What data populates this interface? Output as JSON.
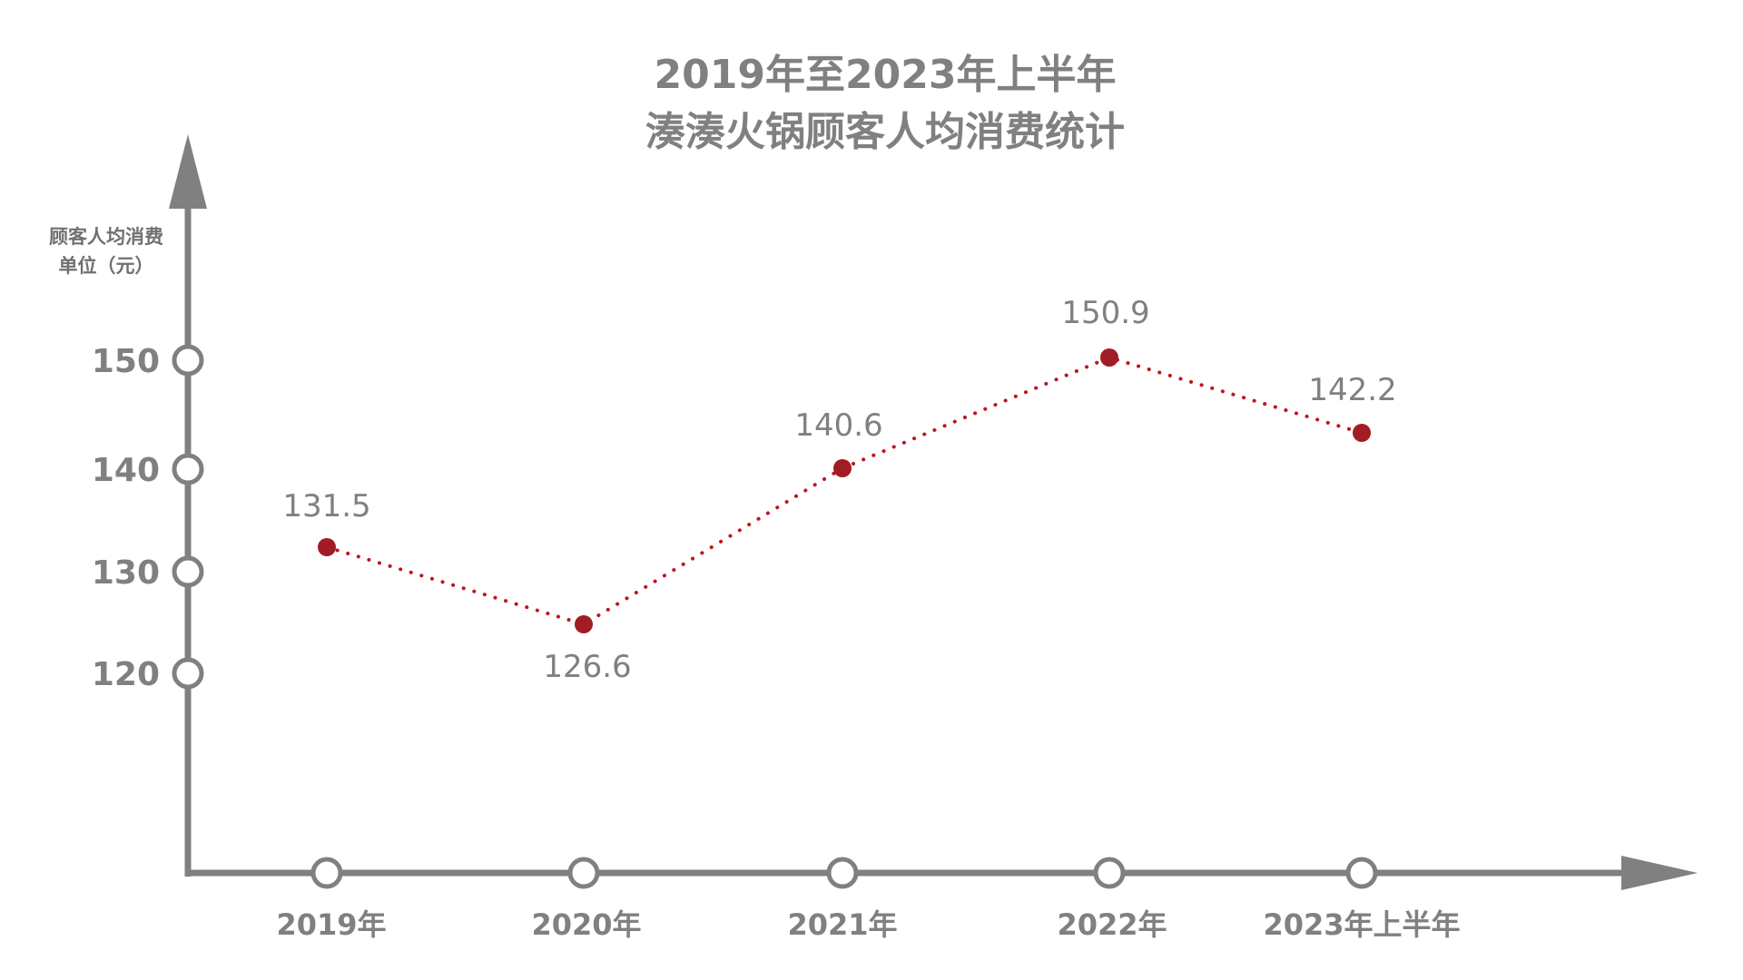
{
  "chart_data": {
    "type": "line",
    "title_lines": [
      "2019年至2023年上半年",
      "湊湊火锅顾客人均消费统计"
    ],
    "ylabel_lines": [
      "顾客人均消费",
      "单位（元）"
    ],
    "xlabel": "",
    "categories": [
      "2019年",
      "2020年",
      "2021年",
      "2022年",
      "2023年上半年"
    ],
    "values": [
      131.5,
      126.6,
      140.6,
      150.9,
      142.2
    ],
    "value_labels": [
      "131.5",
      "126.6",
      "140.6",
      "150.9",
      "142.2"
    ],
    "yticks": [
      120,
      130,
      140,
      150
    ],
    "ytick_labels": [
      "120",
      "130",
      "140",
      "150"
    ],
    "line_style": "dotted",
    "grid": false,
    "legend": "none",
    "colors": {
      "axis": "#808080",
      "line": "#c0141c",
      "marker": "#a11c24",
      "text": "#808080"
    }
  }
}
